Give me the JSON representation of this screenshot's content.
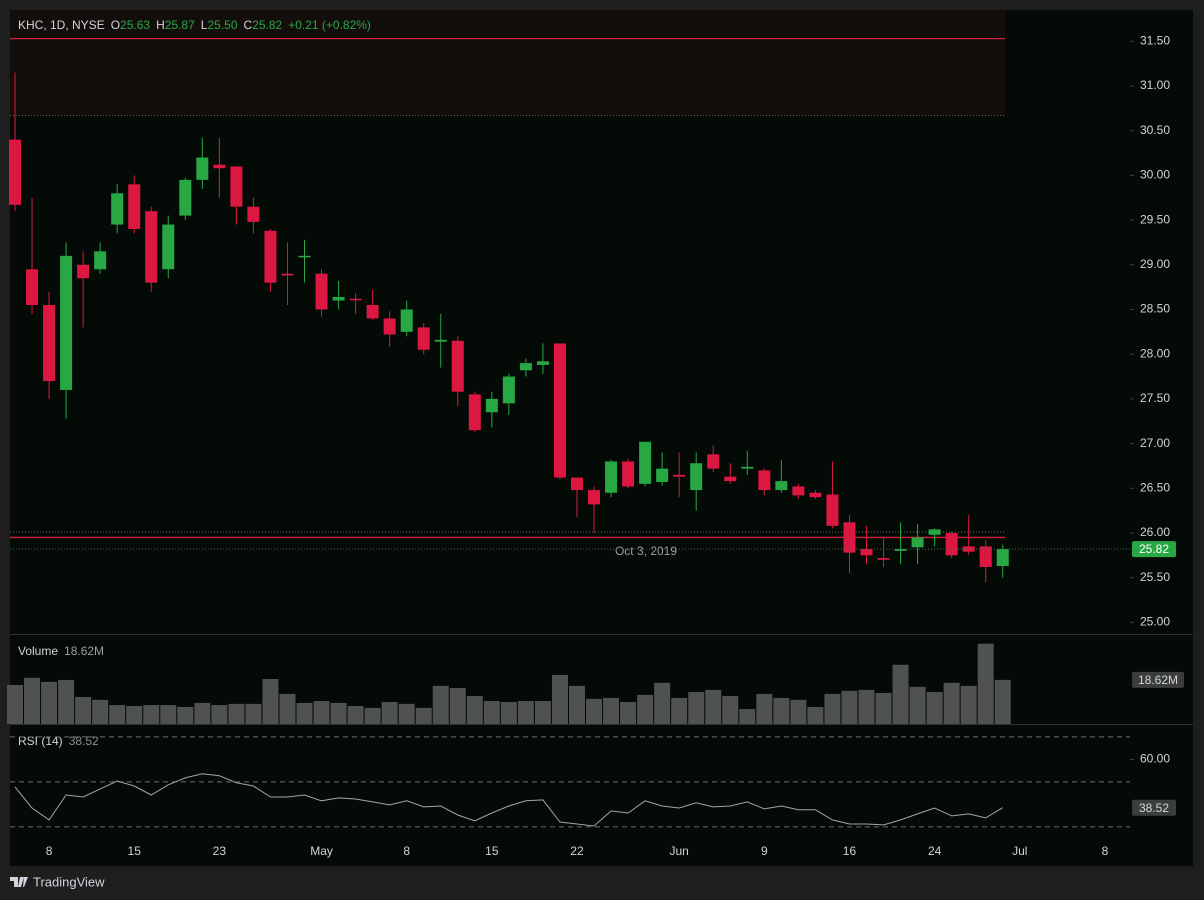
{
  "header": {
    "symbol": "KHC, 1D, NYSE",
    "ohlc": [
      {
        "key": "O",
        "value": "25.63"
      },
      {
        "key": "H",
        "value": "25.87"
      },
      {
        "key": "L",
        "value": "25.50"
      },
      {
        "key": "C",
        "value": "25.82"
      }
    ],
    "change": "+0.21 (+0.82%)"
  },
  "footer": {
    "brand": "TradingView"
  },
  "chart_data": [
    {
      "type": "candlestick",
      "annotation": "Oct 3, 2019",
      "up_color": "#27a844",
      "down_color": "#dc1742",
      "categories": [
        null,
        null,
        "8",
        null,
        null,
        null,
        null,
        "15",
        null,
        null,
        null,
        null,
        "23",
        null,
        null,
        null,
        null,
        null,
        "May",
        null,
        null,
        null,
        null,
        "8",
        null,
        null,
        null,
        null,
        "15",
        null,
        null,
        null,
        null,
        "22",
        null,
        null,
        null,
        null,
        null,
        "Jun",
        null,
        null,
        null,
        null,
        "9",
        null,
        null,
        null,
        null,
        "16",
        null,
        null,
        null,
        null,
        "24",
        null,
        null,
        null,
        null,
        "Jul",
        null,
        null,
        null,
        null,
        "8",
        null
      ],
      "open": [
        30.4,
        28.95,
        28.55,
        27.6,
        29.0,
        28.95,
        29.45,
        29.9,
        29.6,
        28.95,
        29.55,
        29.95,
        30.12,
        30.1,
        29.65,
        29.38,
        28.9,
        29.09,
        28.9,
        28.6,
        28.62,
        28.55,
        28.4,
        28.25,
        28.3,
        28.14,
        28.15,
        27.55,
        27.35,
        27.45,
        27.82,
        27.88,
        28.12,
        26.62,
        26.48,
        26.45,
        26.8,
        26.55,
        26.57,
        26.65,
        26.48,
        26.88,
        26.63,
        26.72,
        26.7,
        26.48,
        26.52,
        26.45,
        26.43,
        26.12,
        25.82,
        25.72,
        25.8,
        25.84,
        25.98,
        26.0,
        25.85,
        25.85,
        25.63,
        null,
        null,
        null,
        null,
        null,
        null,
        null
      ],
      "high": [
        31.15,
        29.75,
        28.7,
        29.25,
        29.15,
        29.25,
        29.9,
        30.0,
        29.65,
        29.55,
        29.97,
        30.42,
        30.42,
        30.1,
        29.75,
        29.4,
        29.25,
        29.28,
        28.95,
        28.82,
        28.68,
        28.72,
        28.48,
        28.6,
        28.35,
        28.45,
        28.2,
        27.58,
        27.58,
        27.78,
        27.95,
        28.12,
        28.12,
        26.62,
        26.52,
        26.82,
        26.83,
        27.02,
        26.9,
        26.9,
        26.9,
        26.98,
        26.78,
        26.92,
        26.72,
        26.82,
        26.55,
        26.48,
        26.8,
        26.2,
        26.08,
        25.95,
        26.12,
        26.1,
        26.05,
        26.02,
        26.2,
        25.92,
        25.87,
        null,
        null,
        null,
        null,
        null,
        null,
        null
      ],
      "low": [
        29.6,
        28.45,
        27.5,
        27.28,
        28.3,
        28.9,
        29.35,
        29.35,
        28.7,
        28.85,
        29.5,
        29.85,
        29.75,
        29.45,
        29.35,
        28.7,
        28.55,
        28.8,
        28.42,
        28.5,
        28.45,
        28.38,
        28.08,
        28.2,
        28.0,
        27.85,
        27.42,
        27.13,
        27.18,
        27.32,
        27.75,
        27.78,
        26.6,
        26.18,
        26.0,
        26.4,
        26.5,
        26.52,
        26.53,
        26.4,
        26.25,
        26.68,
        26.55,
        26.65,
        26.42,
        26.45,
        26.38,
        26.38,
        26.05,
        25.55,
        25.65,
        25.62,
        25.65,
        25.65,
        25.85,
        25.72,
        25.75,
        25.45,
        25.5,
        null,
        null,
        null,
        null,
        null,
        null,
        null
      ],
      "close": [
        29.67,
        28.55,
        27.7,
        29.1,
        28.85,
        29.15,
        29.8,
        29.4,
        28.8,
        29.45,
        29.95,
        30.2,
        30.08,
        29.65,
        29.48,
        28.8,
        28.88,
        29.1,
        28.5,
        28.64,
        28.61,
        28.4,
        28.22,
        28.5,
        28.05,
        28.16,
        27.58,
        27.15,
        27.5,
        27.75,
        27.9,
        27.92,
        26.62,
        26.48,
        26.32,
        26.8,
        26.52,
        27.02,
        26.72,
        26.63,
        26.78,
        26.72,
        26.58,
        26.74,
        26.48,
        26.58,
        26.42,
        26.4,
        26.08,
        25.78,
        25.75,
        25.7,
        25.82,
        25.95,
        26.04,
        25.75,
        25.79,
        25.62,
        25.82,
        null,
        null,
        null,
        null,
        null,
        null,
        null
      ],
      "ylim": [
        24.87,
        31.85
      ],
      "yticks": [
        {
          "value": 25,
          "label": "25.00"
        },
        {
          "value": 25.5,
          "label": "25.50"
        },
        {
          "value": 26,
          "label": "26.00"
        },
        {
          "value": 26.5,
          "label": "26.50"
        },
        {
          "value": 27,
          "label": "27.00"
        },
        {
          "value": 27.5,
          "label": "27.50"
        },
        {
          "value": 28,
          "label": "28.00"
        },
        {
          "value": 28.5,
          "label": "28.50"
        },
        {
          "value": 29,
          "label": "29.00"
        },
        {
          "value": 29.5,
          "label": "29.50"
        },
        {
          "value": 30,
          "label": "30.00"
        },
        {
          "value": 30.5,
          "label": "30.50"
        },
        {
          "value": 31,
          "label": "31.00"
        },
        {
          "value": 31.5,
          "label": "31.50"
        }
      ],
      "zone": {
        "from": 30.67,
        "to": 31.85,
        "color": "#130e0b"
      },
      "lines": [
        {
          "value": 31.53,
          "color": "#d0213f",
          "style": "solid"
        },
        {
          "value": 30.67,
          "color": "#5a6b60",
          "style": "dotted"
        },
        {
          "value": 26.01,
          "color": "#5a6b60",
          "style": "dotted"
        },
        {
          "value": 25.95,
          "color": "#d0213f",
          "style": "solid"
        }
      ]
    },
    {
      "type": "bar",
      "title": "Volume",
      "color": "#4f5250",
      "last_label": "18.62M",
      "values": [
        16.5,
        19.5,
        17.8,
        18.6,
        11.4,
        10.2,
        8.0,
        7.6,
        8.0,
        8.0,
        7.2,
        8.9,
        8.0,
        8.5,
        8.5,
        19.0,
        12.7,
        8.9,
        9.7,
        8.9,
        7.6,
        6.8,
        9.3,
        8.5,
        6.8,
        16.1,
        15.2,
        11.8,
        9.7,
        9.3,
        9.7,
        9.7,
        20.7,
        16.1,
        10.6,
        11.0,
        9.3,
        12.3,
        17.4,
        11.0,
        13.5,
        14.4,
        11.8,
        6.3,
        12.7,
        11.0,
        10.2,
        7.2,
        12.7,
        14.0,
        14.4,
        13.1,
        25.0,
        15.7,
        13.5,
        17.4,
        16.1,
        33.9,
        18.62,
        null,
        null,
        null,
        null,
        null,
        null,
        null
      ],
      "ylim": [
        0,
        38
      ]
    },
    {
      "type": "line",
      "title": "RSI (14)",
      "color": "#a3a6a4",
      "values": [
        47.8,
        38.4,
        33.1,
        44.2,
        43.3,
        46.9,
        50.4,
        48.2,
        44.2,
        48.7,
        51.8,
        53.6,
        52.7,
        49.6,
        48.2,
        43.3,
        43.3,
        44.2,
        41.6,
        42.9,
        42.4,
        41.1,
        39.8,
        41.6,
        38.9,
        39.3,
        35.3,
        32.7,
        36.2,
        39.3,
        41.6,
        42.0,
        32.2,
        31.3,
        30.4,
        37.1,
        36.2,
        41.6,
        39.3,
        38.4,
        40.7,
        38.9,
        39.3,
        41.1,
        38.0,
        39.3,
        37.6,
        37.6,
        33.1,
        31.3,
        31.3,
        30.9,
        33.1,
        35.8,
        38.4,
        34.9,
        35.8,
        34.0,
        38.52,
        null,
        null,
        null,
        null,
        null,
        null,
        null
      ],
      "ylim": [
        26.4,
        75.3
      ],
      "yticks": [
        {
          "value": 60,
          "label": "60.00"
        }
      ],
      "levels": [
        70,
        50,
        30
      ]
    }
  ]
}
